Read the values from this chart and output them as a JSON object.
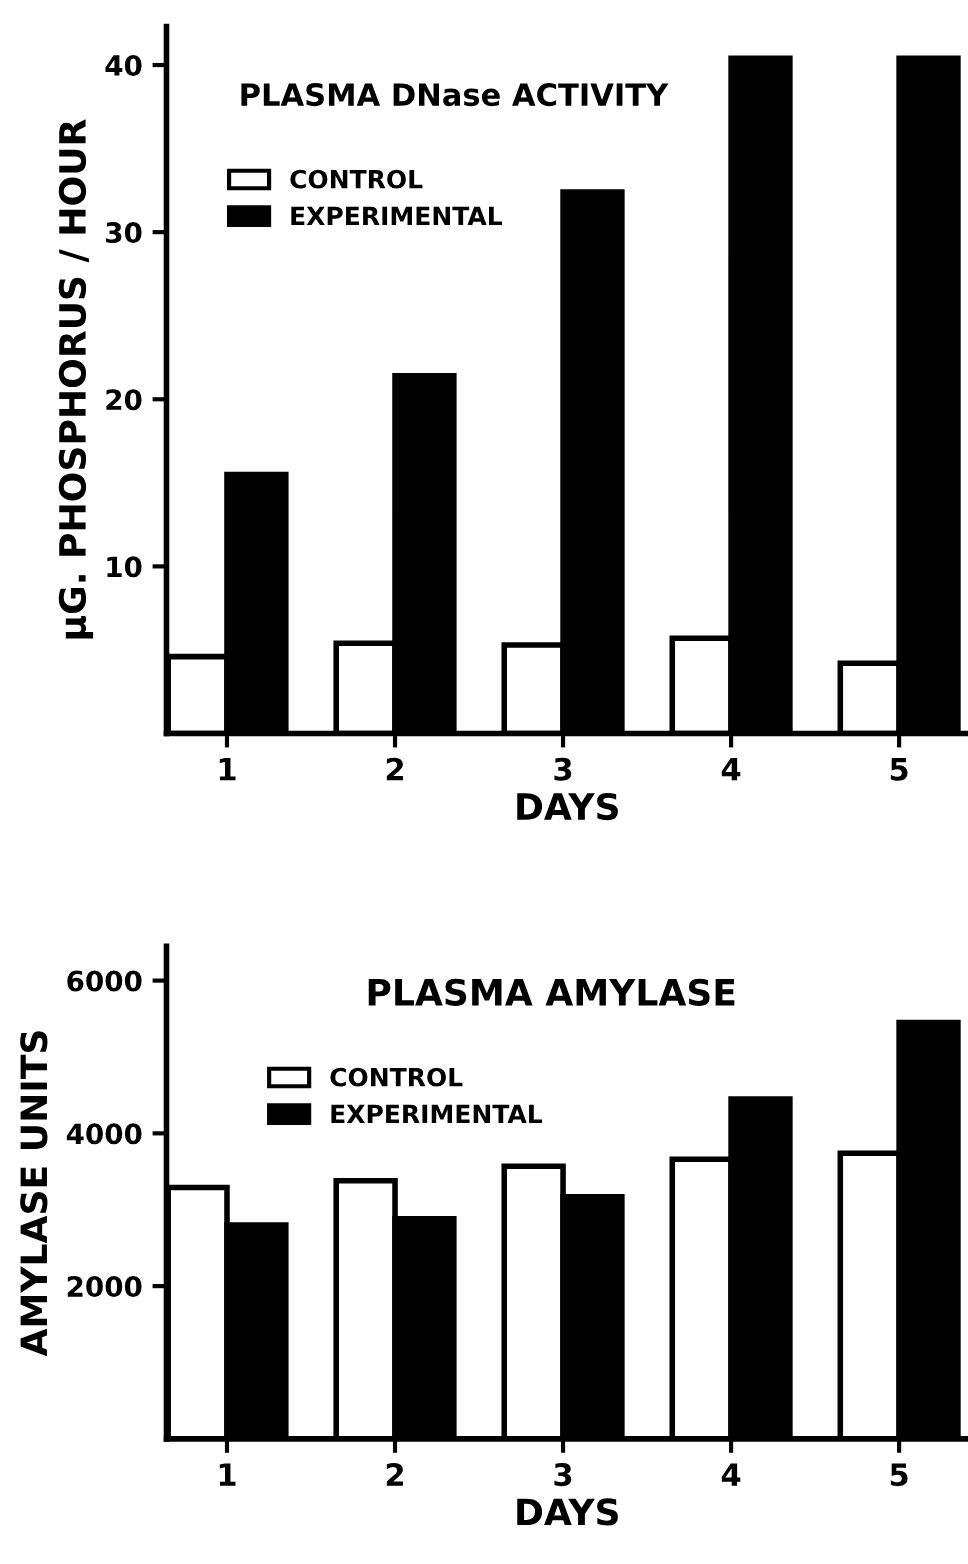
{
  "chart_data": [
    {
      "type": "bar",
      "title": "PLASMA DNase ACTIVITY",
      "xlabel": "DAYS",
      "ylabel": "µG. PHOSPHORUS / HOUR",
      "categories": [
        "1",
        "2",
        "3",
        "4",
        "5"
      ],
      "series": [
        {
          "name": "CONTROL",
          "color": "#ffffff",
          "values": [
            4.6,
            5.4,
            5.3,
            5.7,
            4.2
          ]
        },
        {
          "name": "EXPERIMENTAL",
          "color": "#000000",
          "values": [
            15.5,
            21.4,
            32.4,
            40.4,
            40.4
          ]
        }
      ],
      "ylim": [
        0,
        42.3
      ],
      "yticks": [
        10,
        20,
        30,
        40
      ],
      "legend": "top left",
      "grid": false
    },
    {
      "type": "bar",
      "title": "PLASMA AMYLASE",
      "xlabel": "DAYS",
      "ylabel": "AMYLASE UNITS",
      "categories": [
        "1",
        "2",
        "3",
        "4",
        "5"
      ],
      "series": [
        {
          "name": "CONTROL",
          "color": "#ffffff",
          "values": [
            3290,
            3380,
            3570,
            3660,
            3740
          ]
        },
        {
          "name": "EXPERIMENTAL",
          "color": "#000000",
          "values": [
            2800,
            2880,
            3170,
            4450,
            5450
          ]
        }
      ],
      "ylim": [
        0,
        6450
      ],
      "yticks": [
        2000,
        4000,
        6000
      ],
      "legend": "top left",
      "grid": false
    }
  ]
}
